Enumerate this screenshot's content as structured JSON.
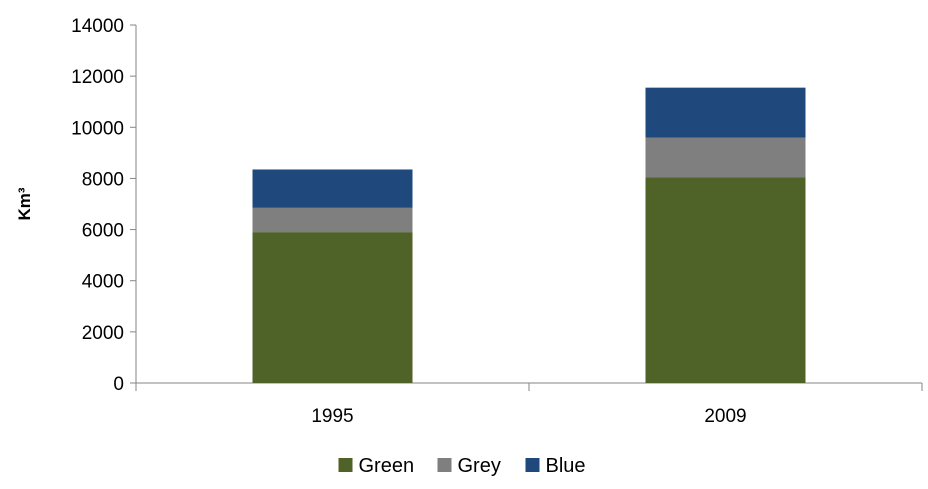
{
  "chart_data": {
    "type": "bar",
    "stacked": true,
    "categories": [
      "1995",
      "2009"
    ],
    "series": [
      {
        "name": "Green",
        "color": "#4f6228",
        "values": [
          5900,
          8050
        ]
      },
      {
        "name": "Grey",
        "color": "#7f7f7f",
        "values": [
          950,
          1550
        ]
      },
      {
        "name": "Blue",
        "color": "#1f497d",
        "values": [
          1500,
          1950
        ]
      }
    ],
    "title": "",
    "xlabel": "",
    "ylabel": "Km³",
    "ylim": [
      0,
      14000
    ],
    "yticks": [
      "0",
      "2000",
      "4000",
      "6000",
      "8000",
      "10000",
      "12000",
      "14000"
    ],
    "grid": false,
    "legend_position": "bottom"
  }
}
